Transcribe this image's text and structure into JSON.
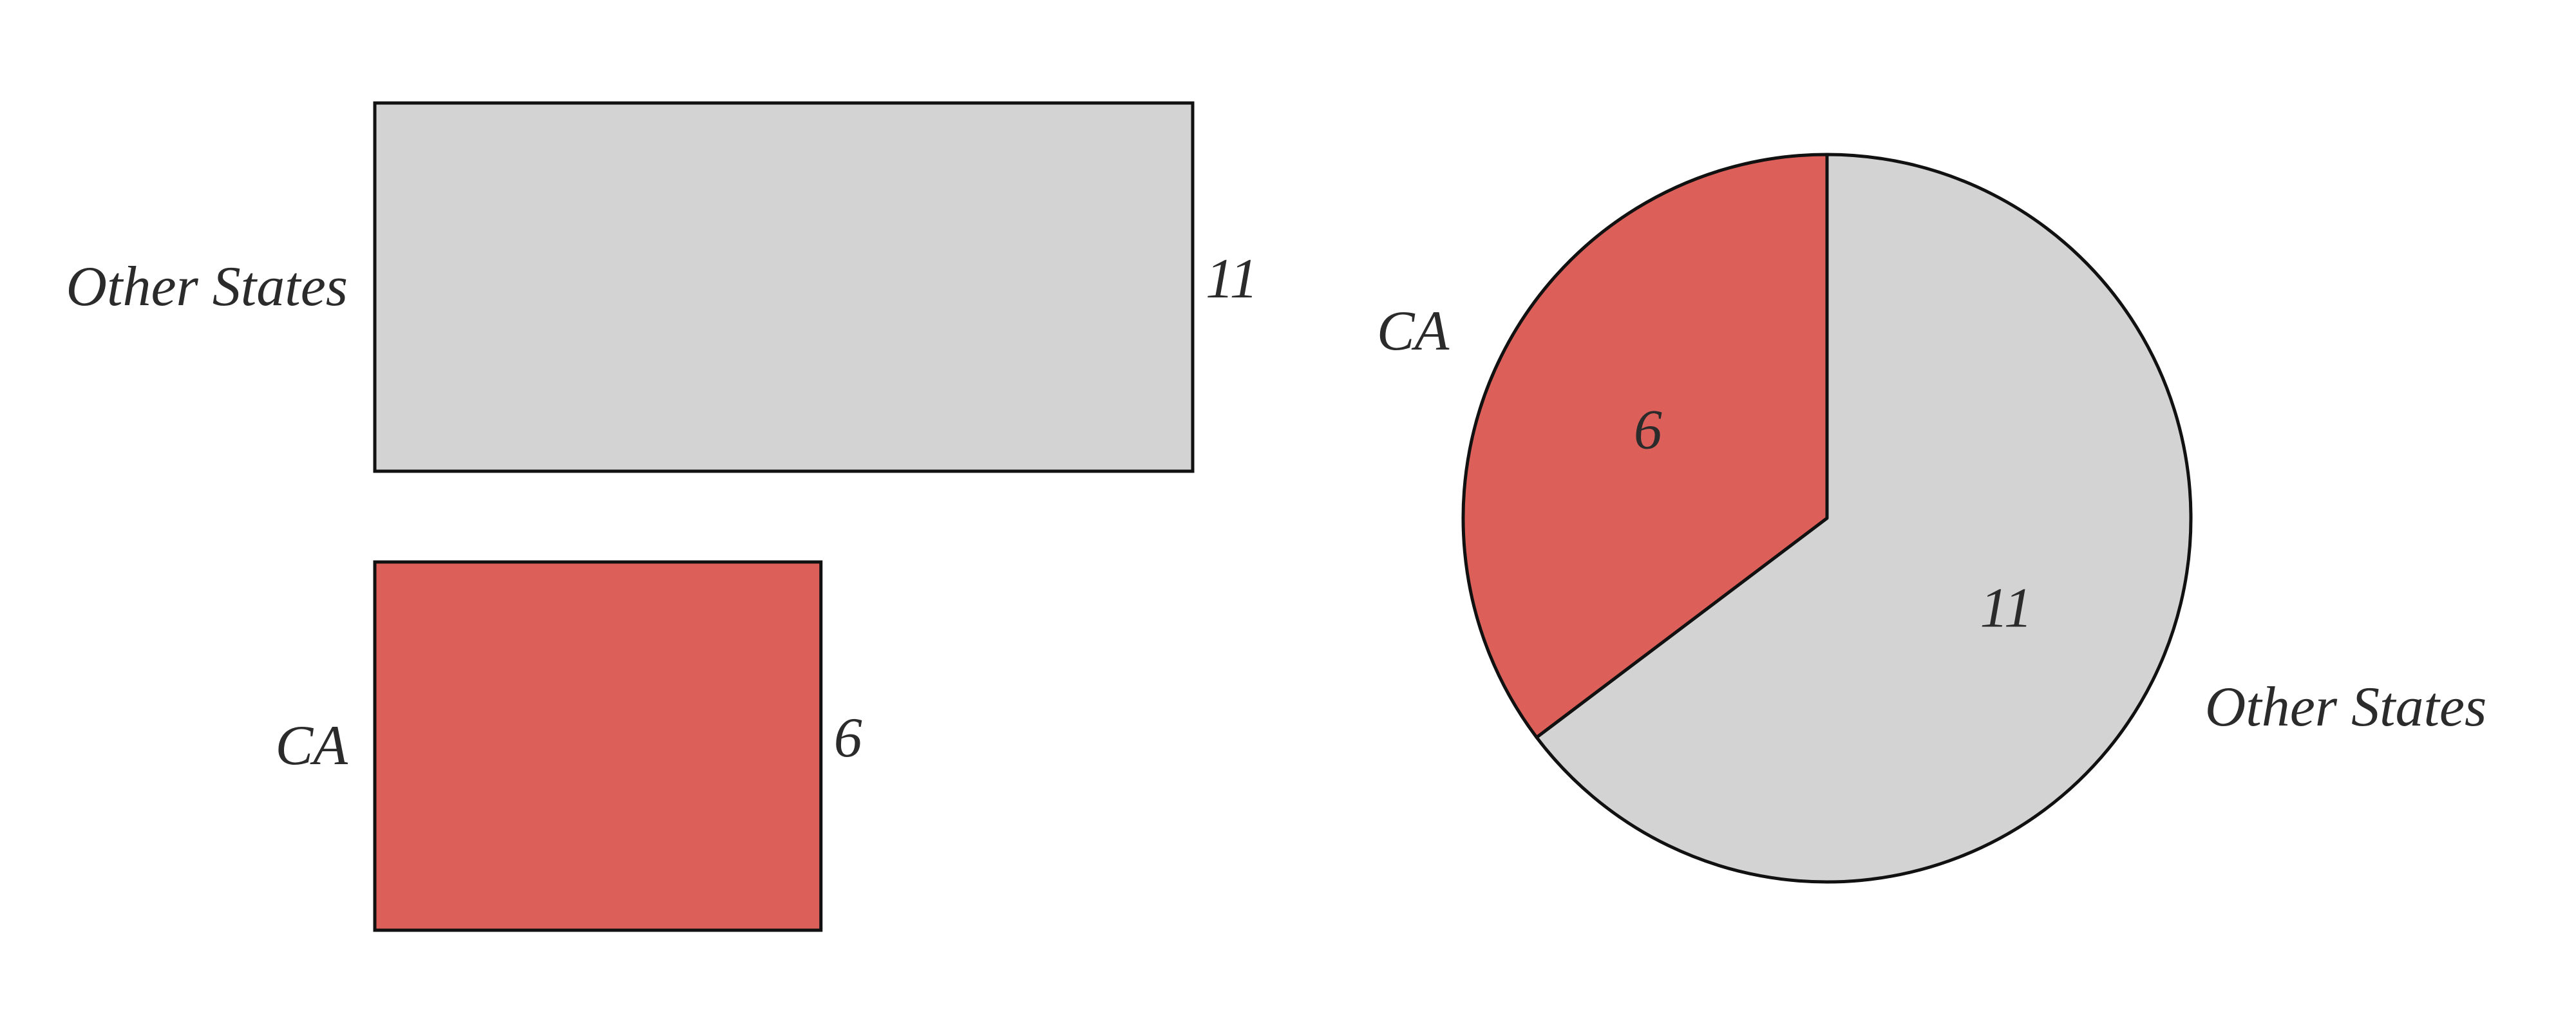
{
  "chart_data": [
    {
      "type": "bar",
      "orientation": "horizontal",
      "categories": [
        "Other States",
        "CA"
      ],
      "values": [
        11,
        6
      ],
      "data_labels": [
        "11",
        "6"
      ],
      "colors": [
        "#d3d3d3",
        "#dc6059"
      ],
      "xlim": [
        0,
        11
      ],
      "grid": false,
      "title": "",
      "xlabel": "",
      "ylabel": ""
    },
    {
      "type": "pie",
      "labels": [
        "CA",
        "Other States"
      ],
      "values": [
        6,
        11
      ],
      "data_labels": [
        "6",
        "11"
      ],
      "colors": [
        "#dc6059",
        "#d3d3d3"
      ],
      "start": "top",
      "direction": "counterclockwise",
      "title": ""
    }
  ]
}
